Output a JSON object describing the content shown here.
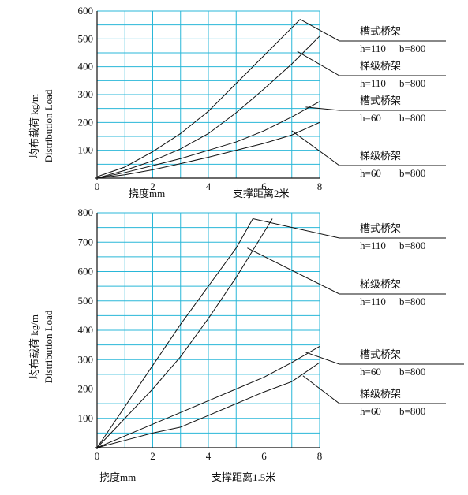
{
  "colors": {
    "grid": "#29b7d8",
    "curve": "#111111"
  },
  "chart_data": [
    {
      "type": "line",
      "ylabel_cn": "均布载荷 kg/m",
      "ylabel_en": "Distribution Load",
      "xlabel_left": "挠度mm",
      "xlabel_right": "支撑距离2米",
      "xlim": [
        0,
        8
      ],
      "ylim": [
        0,
        600
      ],
      "x_ticks": [
        "0",
        "2",
        "4",
        "6",
        "8"
      ],
      "y_ticks": [
        "100",
        "200",
        "300",
        "400",
        "500",
        "600"
      ],
      "series": [
        {
          "name": "槽式桥架 h=110 b=800",
          "x": [
            0,
            1,
            2,
            3,
            4,
            5,
            6,
            7,
            7.3
          ],
          "y": [
            5,
            40,
            95,
            160,
            240,
            340,
            440,
            540,
            570
          ]
        },
        {
          "name": "梯级桥架 h=110 b=800",
          "x": [
            0,
            1,
            2,
            3,
            4,
            5,
            6,
            7,
            8
          ],
          "y": [
            0,
            28,
            62,
            105,
            160,
            235,
            320,
            410,
            510
          ]
        },
        {
          "name": "槽式桥架 h=60 b=800",
          "x": [
            0,
            1,
            2,
            3,
            4,
            5,
            6,
            7,
            8
          ],
          "y": [
            0,
            20,
            45,
            70,
            100,
            130,
            170,
            220,
            275
          ]
        },
        {
          "name": "梯级桥架 h=60 b=800",
          "x": [
            0,
            1,
            2,
            3,
            4,
            5,
            6,
            7,
            8
          ],
          "y": [
            0,
            12,
            30,
            52,
            75,
            100,
            125,
            155,
            200
          ]
        }
      ],
      "legend": [
        {
          "line1": "槽式桥架",
          "line2a": "h=110",
          "line2b": "b=800"
        },
        {
          "line1": "梯级桥架",
          "line2a": "h=110",
          "line2b": "b=800"
        },
        {
          "line1": "槽式桥架",
          "line2a": "h=60",
          "line2b": "b=800"
        },
        {
          "line1": "梯级桥架",
          "line2a": "h=60",
          "line2b": "b=800"
        }
      ]
    },
    {
      "type": "line",
      "ylabel_cn": "均布载荷 kg/m",
      "ylabel_en": "Distribution Load",
      "xlabel_left": "挠度mm",
      "xlabel_right": "支撑距离1.5米",
      "xlim": [
        0,
        8
      ],
      "ylim": [
        0,
        800
      ],
      "x_ticks": [
        "0",
        "2",
        "4",
        "6",
        "8"
      ],
      "y_ticks": [
        "100",
        "200",
        "300",
        "400",
        "500",
        "600",
        "700",
        "800"
      ],
      "series": [
        {
          "name": "槽式桥架 h=110 b=800",
          "x": [
            0,
            1,
            2,
            3,
            4,
            5,
            5.6
          ],
          "y": [
            0,
            140,
            280,
            420,
            550,
            680,
            780
          ]
        },
        {
          "name": "梯级桥架 h=110 b=800",
          "x": [
            0,
            1,
            2,
            3,
            4,
            5,
            6.3
          ],
          "y": [
            0,
            100,
            200,
            310,
            440,
            580,
            780
          ]
        },
        {
          "name": "槽式桥架 h=60 b=800",
          "x": [
            0,
            1,
            2,
            3,
            4,
            5,
            6,
            7,
            8
          ],
          "y": [
            0,
            40,
            80,
            120,
            160,
            200,
            240,
            290,
            345
          ]
        },
        {
          "name": "梯级桥架 h=60 b=800",
          "x": [
            0,
            1,
            2,
            3,
            4,
            5,
            6,
            7,
            8
          ],
          "y": [
            0,
            25,
            50,
            70,
            110,
            150,
            190,
            225,
            290
          ]
        }
      ],
      "legend": [
        {
          "line1": "槽式桥架",
          "line2a": "h=110",
          "line2b": "b=800"
        },
        {
          "line1": "梯级桥架",
          "line2a": "h=110",
          "line2b": "b=800"
        },
        {
          "line1": "槽式桥架",
          "line2a": "h=60",
          "line2b": "b=800"
        },
        {
          "line1": "梯级桥架",
          "line2a": "h=60",
          "line2b": "b=800"
        }
      ]
    }
  ]
}
